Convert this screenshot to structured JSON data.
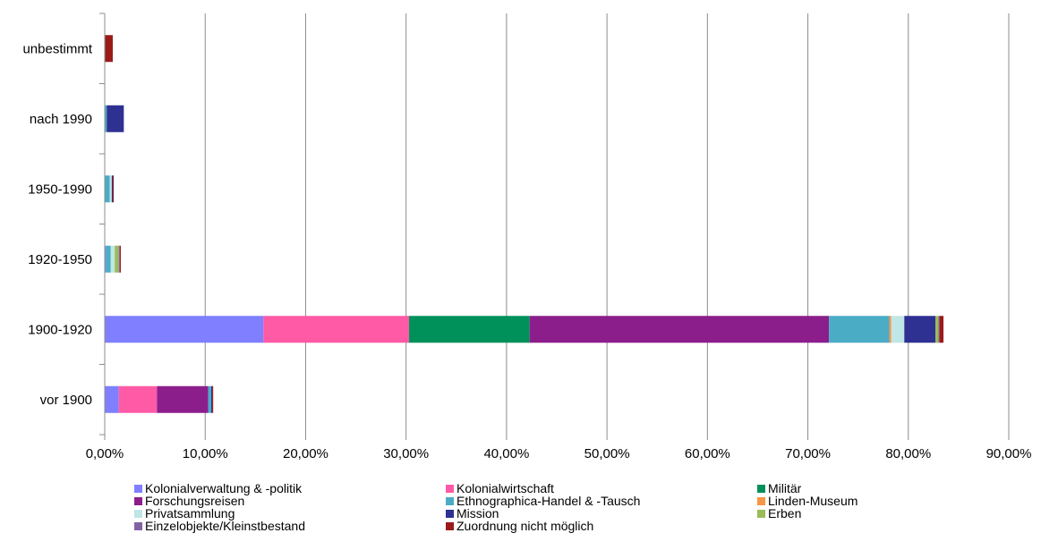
{
  "chart_data": {
    "type": "bar",
    "orientation": "horizontal",
    "stacked": true,
    "categories": [
      "vor 1900",
      "1900-1920",
      "1920-1950",
      "1950-1990",
      "nach 1990",
      "unbestimmt"
    ],
    "xlim": [
      0,
      0.9
    ],
    "x_ticks": [
      "0,00%",
      "10,00%",
      "20,00%",
      "30,00%",
      "40,00%",
      "50,00%",
      "60,00%",
      "70,00%",
      "80,00%",
      "90,00%"
    ],
    "grid": true,
    "legend_position": "bottom",
    "series": [
      {
        "name": "Kolonialverwaltung & -politik",
        "color": "#7f7fff",
        "values": [
          0.014,
          0.158,
          0.001,
          0.0,
          0.0,
          0.0
        ]
      },
      {
        "name": "Kolonialwirtschaft",
        "color": "#ff5aa5",
        "values": [
          0.038,
          0.145,
          0.0,
          0.0,
          0.0,
          0.0
        ]
      },
      {
        "name": "Militär",
        "color": "#00915a",
        "values": [
          0.0,
          0.12,
          0.0,
          0.0,
          0.0,
          0.0
        ]
      },
      {
        "name": "Forschungsreisen",
        "color": "#8c1e8c",
        "values": [
          0.051,
          0.298,
          0.0,
          0.0,
          0.0,
          0.0
        ]
      },
      {
        "name": "Ethnographica-Handel & -Tausch",
        "color": "#4bacc6",
        "values": [
          0.003,
          0.06,
          0.005,
          0.005,
          0.002,
          0.0
        ]
      },
      {
        "name": "Linden-Museum",
        "color": "#f79646",
        "values": [
          0.0,
          0.002,
          0.0,
          0.0,
          0.0,
          0.0
        ]
      },
      {
        "name": "Privatsammlung",
        "color": "#c0e6e6",
        "values": [
          0.0,
          0.013,
          0.004,
          0.002,
          0.0,
          0.0
        ]
      },
      {
        "name": "Mission",
        "color": "#2e3192",
        "values": [
          0.001,
          0.031,
          0.0,
          0.001,
          0.017,
          0.0
        ]
      },
      {
        "name": "Erben",
        "color": "#9bbb59",
        "values": [
          0.0,
          0.003,
          0.004,
          0.0,
          0.0,
          0.0
        ]
      },
      {
        "name": "Einzelobjekte/Kleinstbestand",
        "color": "#8064a2",
        "values": [
          0.0,
          0.001,
          0.001,
          0.0,
          0.0,
          0.0
        ]
      },
      {
        "name": "Zuordnung nicht möglich",
        "color": "#9b1b1b",
        "values": [
          0.001,
          0.004,
          0.001,
          0.001,
          0.0,
          0.008
        ]
      }
    ]
  }
}
